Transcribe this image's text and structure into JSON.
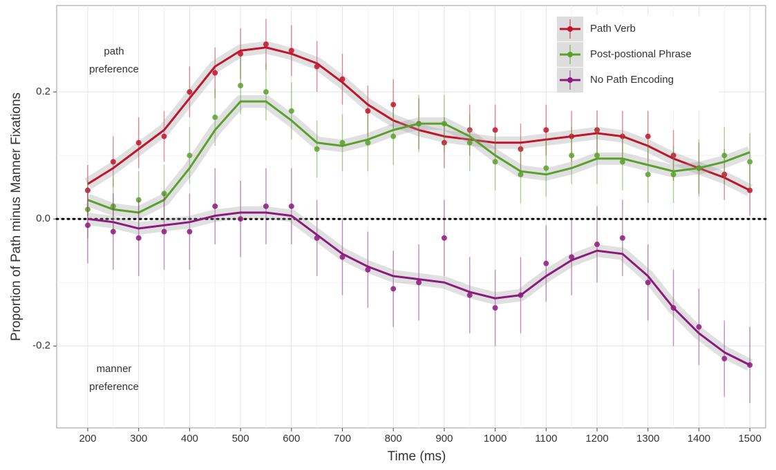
{
  "chart_data": {
    "type": "line",
    "x_label": "Time (ms)",
    "y_label": "Proportion of Path minus Manner Fixations",
    "annotations": [
      [
        "path",
        "preference"
      ],
      [
        "manner",
        "preference"
      ]
    ],
    "x": [
      200,
      250,
      300,
      350,
      400,
      450,
      500,
      550,
      600,
      650,
      700,
      750,
      800,
      850,
      900,
      950,
      1000,
      1050,
      1100,
      1150,
      1200,
      1250,
      1300,
      1350,
      1400,
      1450,
      1500
    ],
    "xlim": [
      139,
      1531
    ],
    "xticks": [
      200,
      300,
      400,
      500,
      600,
      700,
      800,
      900,
      1000,
      1100,
      1200,
      1300,
      1400,
      1500
    ],
    "ylim": [
      -0.329,
      0.336
    ],
    "yticks": [
      {
        "value": -0.2,
        "label": "-0.2"
      },
      {
        "value": 0,
        "label": "0.0"
      },
      {
        "value": 0.2,
        "label": "0.2"
      }
    ],
    "hline": 0,
    "grid": true,
    "legend": "top-right",
    "series": [
      {
        "name": "Path Verb",
        "color": "#c0142c",
        "error": 0.04,
        "values": [
          0.045,
          0.09,
          0.12,
          0.13,
          0.2,
          0.23,
          0.26,
          0.275,
          0.265,
          0.24,
          0.22,
          0.17,
          0.18,
          0.15,
          0.12,
          0.14,
          0.14,
          0.11,
          0.14,
          0.13,
          0.14,
          0.13,
          0.13,
          0.1,
          0.08,
          0.07,
          0.045
        ],
        "trend": [
          0.055,
          0.08,
          0.11,
          0.14,
          0.19,
          0.24,
          0.265,
          0.27,
          0.26,
          0.245,
          0.215,
          0.18,
          0.155,
          0.14,
          0.13,
          0.125,
          0.12,
          0.12,
          0.125,
          0.13,
          0.135,
          0.13,
          0.115,
          0.095,
          0.08,
          0.065,
          0.045
        ]
      },
      {
        "name": "Post-postional Phrase",
        "color": "#5aa02c",
        "error": 0.045,
        "values": [
          0.015,
          0.02,
          0.03,
          0.04,
          0.1,
          0.16,
          0.21,
          0.2,
          0.17,
          0.11,
          0.12,
          0.12,
          0.13,
          0.15,
          0.15,
          0.12,
          0.09,
          0.07,
          0.08,
          0.1,
          0.1,
          0.09,
          0.07,
          0.07,
          0.08,
          0.1,
          0.09
        ],
        "trend": [
          0.03,
          0.015,
          0.01,
          0.03,
          0.08,
          0.14,
          0.185,
          0.185,
          0.155,
          0.12,
          0.115,
          0.125,
          0.14,
          0.15,
          0.15,
          0.13,
          0.1,
          0.075,
          0.07,
          0.08,
          0.095,
          0.095,
          0.085,
          0.075,
          0.08,
          0.09,
          0.105
        ]
      },
      {
        "name": "No Path Encoding",
        "color": "#8b1a7e",
        "error": 0.06,
        "values": [
          -0.01,
          -0.02,
          -0.03,
          -0.02,
          -0.02,
          0.02,
          0.0,
          0.02,
          0.02,
          -0.03,
          -0.06,
          -0.08,
          -0.11,
          -0.1,
          -0.03,
          -0.12,
          -0.14,
          -0.12,
          -0.07,
          -0.06,
          -0.04,
          -0.03,
          -0.1,
          -0.14,
          -0.17,
          -0.22,
          -0.23
        ],
        "trend": [
          0.0,
          -0.005,
          -0.015,
          -0.01,
          -0.005,
          0.005,
          0.01,
          0.01,
          0.005,
          -0.025,
          -0.055,
          -0.075,
          -0.09,
          -0.095,
          -0.1,
          -0.115,
          -0.125,
          -0.12,
          -0.09,
          -0.065,
          -0.05,
          -0.055,
          -0.09,
          -0.14,
          -0.18,
          -0.21,
          -0.23
        ]
      }
    ]
  }
}
